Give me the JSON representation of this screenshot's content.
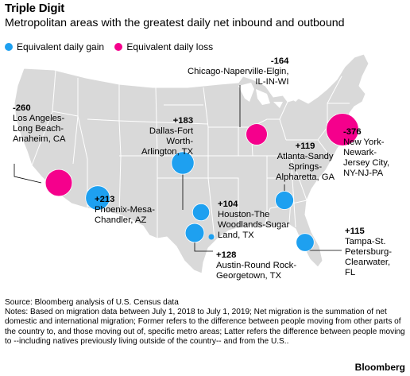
{
  "header": {
    "title": "Triple Digit",
    "subtitle": "Metropolitan areas with the greatest daily net inbound and outbound"
  },
  "legend": {
    "gain_label": "Equivalent daily gain",
    "loss_label": "Equivalent daily loss",
    "gain_color": "#1ea0f0",
    "loss_color": "#f5008c"
  },
  "metros": [
    {
      "key": "chicago",
      "value": "-164",
      "name": "Chicago-Naperville-Elgin,\nIL-IN-WI",
      "type": "loss"
    },
    {
      "key": "losangeles",
      "value": "-260",
      "name": "Los Angeles-\nLong Beach-\nAnaheim, CA",
      "type": "loss"
    },
    {
      "key": "dallas",
      "value": "+183",
      "name": "Dallas-Fort\nWorth-\nArlington, TX",
      "type": "gain"
    },
    {
      "key": "newyork",
      "value": "-376",
      "name": "New York-\nNewark-\nJersey City,\nNY-NJ-PA",
      "type": "loss"
    },
    {
      "key": "atlanta",
      "value": "+119",
      "name": "Atlanta-Sandy\nSprings-\nAlpharetta, GA",
      "type": "gain"
    },
    {
      "key": "phoenix",
      "value": "+213",
      "name": "Phoenix-Mesa-\nChandler, AZ",
      "type": "gain"
    },
    {
      "key": "houston",
      "value": "+104",
      "name": "Houston-The\nWoodlands-Sugar\nLand, TX",
      "type": "gain"
    },
    {
      "key": "austin",
      "value": "+128",
      "name": "Austin-Round Rock-\nGeorgetown, TX",
      "type": "gain"
    },
    {
      "key": "tampa",
      "value": "+115",
      "name": "Tampa-St.\nPetersburg-\nClearwater,\nFL",
      "type": "gain"
    }
  ],
  "footer": {
    "source": "Source: Bloomberg analysis of U.S. Census data",
    "notes": "Notes: Based on migration data between July 1, 2018 to July 1, 2019; Net migration is the summation of net domestic and international migration; Former refers to the difference between people moving from other parts of the country to, and those moving out of, specific metro areas; Latter refers the difference between people moving to --including natives previously living outside of the country-- and from the U.S..",
    "brand": "Bloomberg"
  },
  "colors": {
    "land": "#d9d9d9",
    "border": "#ffffff",
    "leader": "#000000"
  }
}
